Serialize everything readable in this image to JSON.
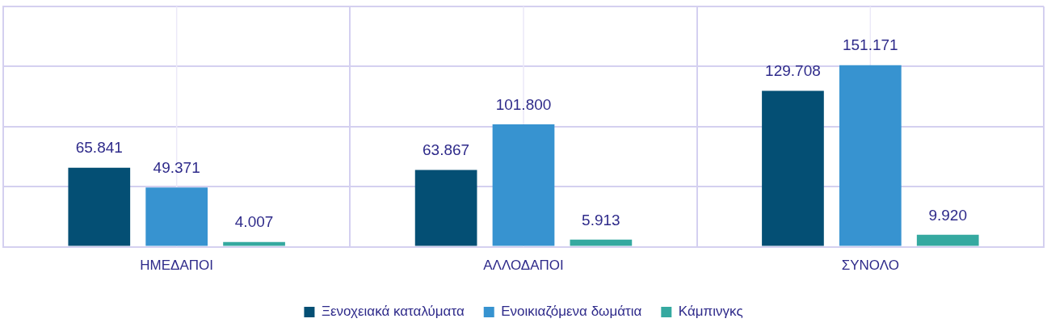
{
  "chart_data": {
    "type": "bar",
    "categories": [
      "ΗΜΕΔΑΠΟΙ",
      "ΑΛΛΟΔΑΠΟΙ",
      "ΣΥΝΟΛΟ"
    ],
    "series": [
      {
        "name": "Ξενοχειακά καταλύματα",
        "color": "#044f74",
        "values": [
          65841,
          63867,
          129708
        ],
        "value_labels": [
          "65.841",
          "63.867",
          "129.708"
        ]
      },
      {
        "name": "Ενοικιαζόμενα δωμάτια",
        "color": "#3793d0",
        "values": [
          49371,
          101800,
          151171
        ],
        "value_labels": [
          "49.371",
          "101.800",
          "151.171"
        ]
      },
      {
        "name": "Κάμπινγκς",
        "color": "#35a9a0",
        "values": [
          4007,
          5913,
          9920
        ],
        "value_labels": [
          "4.007",
          "5.913",
          "9.920"
        ]
      }
    ],
    "ylim": [
      0,
      200000
    ],
    "tick_labels": "x",
    "grid": true,
    "legend": "bottom"
  }
}
